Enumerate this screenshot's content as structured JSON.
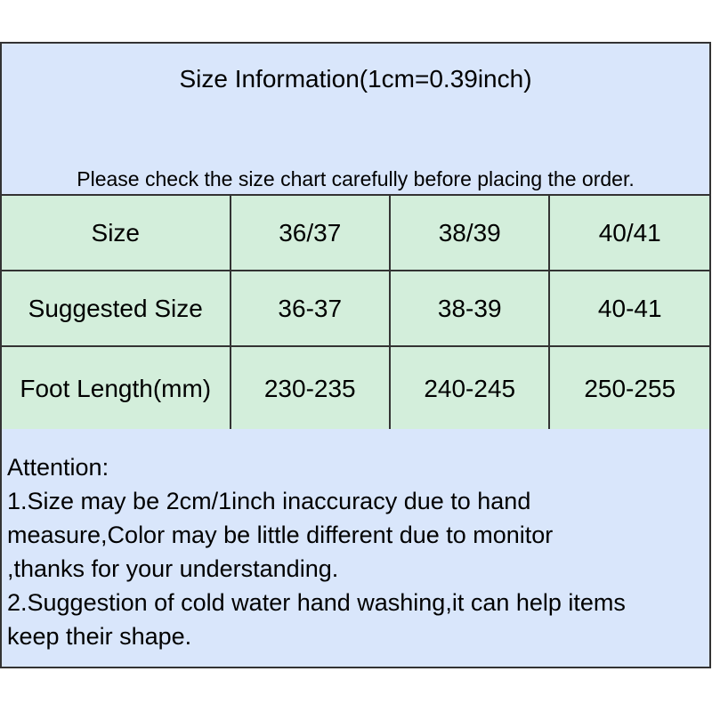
{
  "title": "Size Information(1cm=0.39inch)",
  "note": "Please check the size chart carefully before placing the order.",
  "table": {
    "rows": [
      {
        "label": "Size",
        "values": [
          "36/37",
          "38/39",
          "40/41"
        ]
      },
      {
        "label": "Suggested Size",
        "values": [
          "36-37",
          "38-39",
          "40-41"
        ]
      },
      {
        "label": "Foot Length(mm)",
        "values": [
          "230-235",
          "240-245",
          "250-255"
        ]
      }
    ]
  },
  "attention": {
    "heading": "Attention:",
    "lines": [
      "1.Size may be 2cm/1inch inaccuracy due to hand",
      "measure,Color may be little different due to monitor",
      ",thanks for your understanding.",
      "2.Suggestion of cold water hand washing,it can help items",
      "keep their shape."
    ]
  },
  "colors": {
    "header_bg": "#d9e6fb",
    "table_bg": "#d3eedb",
    "border": "#333333"
  }
}
